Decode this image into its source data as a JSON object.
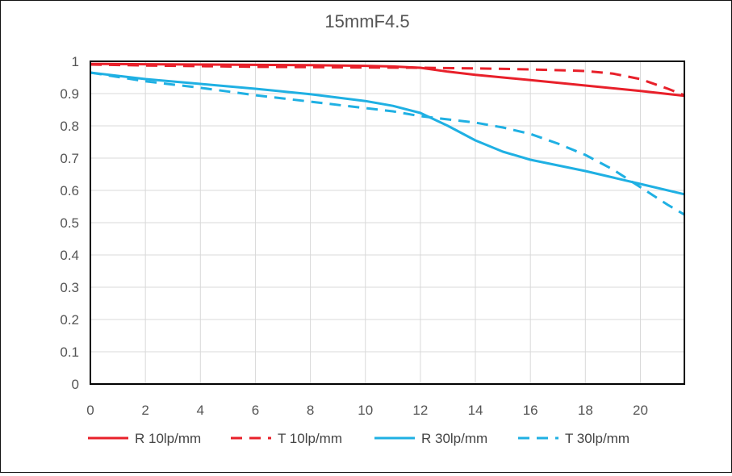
{
  "chart_data": {
    "type": "line",
    "title": "15mmF4.5",
    "xlim": [
      0,
      21.6
    ],
    "ylim": [
      0,
      1
    ],
    "x_ticks": [
      "0",
      "2",
      "4",
      "6",
      "8",
      "10",
      "12",
      "14",
      "16",
      "18",
      "20"
    ],
    "y_ticks": [
      "0",
      "0.1",
      "0.2",
      "0.3",
      "0.4",
      "0.5",
      "0.6",
      "0.7",
      "0.8",
      "0.9",
      "1"
    ],
    "grid": true,
    "legend_position": "bottom",
    "series": [
      {
        "name": "R 10lp/mm",
        "color": "#e8202a",
        "dash": "solid",
        "x": [
          0,
          2,
          4,
          6,
          8,
          10,
          11,
          12,
          13,
          14,
          16,
          18,
          20,
          21.6
        ],
        "y": [
          0.992,
          0.991,
          0.99,
          0.989,
          0.988,
          0.986,
          0.984,
          0.98,
          0.968,
          0.958,
          0.942,
          0.925,
          0.908,
          0.893
        ]
      },
      {
        "name": "T 10lp/mm",
        "color": "#e8202a",
        "dash": "dashed",
        "x": [
          0,
          2,
          4,
          6,
          8,
          10,
          12,
          14,
          16,
          18,
          19,
          20,
          21,
          21.6
        ],
        "y": [
          0.99,
          0.987,
          0.985,
          0.983,
          0.982,
          0.981,
          0.98,
          0.978,
          0.975,
          0.97,
          0.962,
          0.945,
          0.915,
          0.895
        ]
      },
      {
        "name": "R 30lp/mm",
        "color": "#1fb0e3",
        "dash": "solid",
        "x": [
          0,
          2,
          4,
          6,
          8,
          10,
          11,
          12,
          13,
          14,
          15,
          16,
          18,
          20,
          21.6
        ],
        "y": [
          0.965,
          0.945,
          0.93,
          0.915,
          0.898,
          0.877,
          0.862,
          0.84,
          0.8,
          0.755,
          0.72,
          0.695,
          0.66,
          0.62,
          0.588
        ]
      },
      {
        "name": "T 30lp/mm",
        "color": "#1fb0e3",
        "dash": "dashed",
        "x": [
          0,
          2,
          4,
          6,
          8,
          10,
          11,
          12,
          13,
          14,
          15,
          16,
          17,
          18,
          19,
          20,
          21,
          21.6
        ],
        "y": [
          0.965,
          0.938,
          0.918,
          0.895,
          0.875,
          0.855,
          0.845,
          0.83,
          0.82,
          0.81,
          0.795,
          0.775,
          0.745,
          0.71,
          0.665,
          0.61,
          0.555,
          0.525
        ]
      }
    ]
  }
}
